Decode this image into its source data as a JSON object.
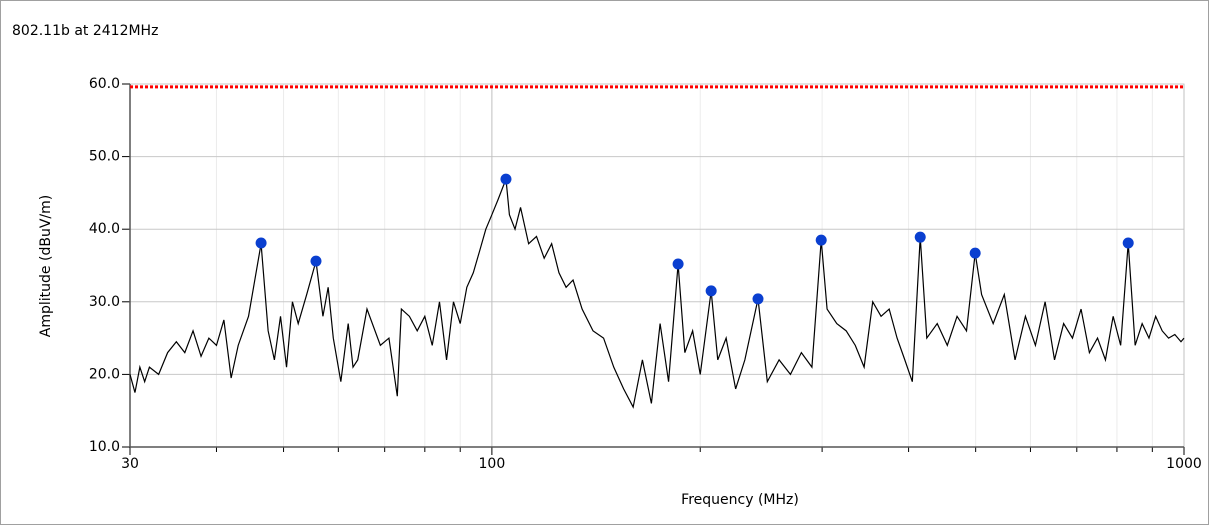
{
  "chart_data": {
    "type": "line",
    "title": "802.11b at 2412MHz",
    "x_label": "Frequency (MHz)",
    "y_label": "Amplitude (dBuV/m)",
    "log_x": true,
    "grid": true,
    "xlim": [
      30,
      1000
    ],
    "ylim": [
      10,
      60
    ],
    "xticks": [
      30,
      100,
      1000
    ],
    "xminor_ticks": [
      40,
      50,
      60,
      70,
      80,
      90,
      200,
      300,
      400,
      500,
      600,
      700,
      800,
      900
    ],
    "yticks": [
      {
        "value": 10,
        "label": "10.0"
      },
      {
        "value": 20,
        "label": "20.0"
      },
      {
        "value": 30,
        "label": "30.0"
      },
      {
        "value": 40,
        "label": "40.0"
      },
      {
        "value": 50,
        "label": "50.0"
      },
      {
        "value": 60,
        "label": "60.0"
      }
    ],
    "limit": {
      "value": 59.6,
      "color": "#ff0000"
    },
    "series": [
      {
        "type": "line",
        "color": "#000000",
        "x": [
          30,
          30.5,
          31,
          31.5,
          32,
          33,
          34,
          35,
          36,
          37,
          38,
          39,
          40,
          41,
          42,
          43,
          44.5,
          46.4,
          47.5,
          48.5,
          49.5,
          50.5,
          51.5,
          52.5,
          54,
          55.7,
          57,
          58,
          59,
          60.5,
          62,
          63,
          64,
          66,
          69,
          71,
          73,
          74,
          76,
          78,
          80,
          82,
          84,
          86,
          88,
          90,
          92,
          94,
          96,
          98,
          100,
          102,
          104.8,
          106,
          108,
          110,
          113,
          116,
          119,
          122,
          125,
          128,
          131,
          135,
          140,
          145,
          150,
          155,
          160,
          165,
          170,
          175,
          180,
          185.8,
          190,
          195,
          200,
          207.4,
          212,
          218,
          225,
          232,
          242.4,
          250,
          260,
          270,
          280,
          290,
          299.1,
          305,
          315,
          325,
          335,
          345,
          355,
          365,
          375,
          385,
          395,
          405,
          415.8,
          425,
          440,
          455,
          470,
          485,
          499.2,
          510,
          530,
          550,
          570,
          590,
          610,
          630,
          650,
          670,
          690,
          710,
          730,
          750,
          770,
          790,
          810,
          830.6,
          850,
          870,
          890,
          910,
          930,
          950,
          970,
          990,
          1000
        ],
        "values": [
          20,
          17.5,
          21,
          19,
          21,
          20,
          23,
          24.5,
          23,
          26,
          22.5,
          25,
          24,
          27.5,
          19.5,
          24,
          28,
          38,
          26,
          22,
          28,
          21,
          30,
          27,
          31,
          35.6,
          28,
          32,
          25,
          19,
          27,
          21,
          22,
          29,
          24,
          25,
          17,
          29,
          28,
          26,
          28,
          24,
          30,
          22,
          30,
          27,
          32,
          34,
          37,
          40,
          42,
          44,
          46.9,
          42,
          40,
          43,
          38,
          39,
          36,
          38,
          34,
          32,
          33,
          29,
          26,
          25,
          21,
          18,
          15.5,
          22,
          16,
          27,
          19,
          35.2,
          23,
          26,
          20,
          31.5,
          22,
          25,
          18,
          22,
          30.4,
          19,
          22,
          20,
          23,
          21,
          38.5,
          29,
          27,
          26,
          24,
          21,
          30,
          28,
          29,
          25,
          22,
          19,
          38.9,
          25,
          27,
          24,
          28,
          26,
          36.7,
          31,
          27,
          31,
          22,
          28,
          24,
          30,
          22,
          27,
          25,
          29,
          23,
          25,
          22,
          28,
          24,
          38.1,
          24,
          27,
          25,
          28,
          26,
          25,
          25.5,
          24.5,
          25
        ]
      },
      {
        "type": "scatter",
        "color": "#0a3fd0",
        "x": [
          46.4,
          55.7,
          104.8,
          185.8,
          207.4,
          242.4,
          299.1,
          415.8,
          499.2,
          830.6
        ],
        "values": [
          38.1,
          35.6,
          46.9,
          35.2,
          31.5,
          30.4,
          38.5,
          38.9,
          36.7,
          38.1
        ]
      }
    ]
  }
}
